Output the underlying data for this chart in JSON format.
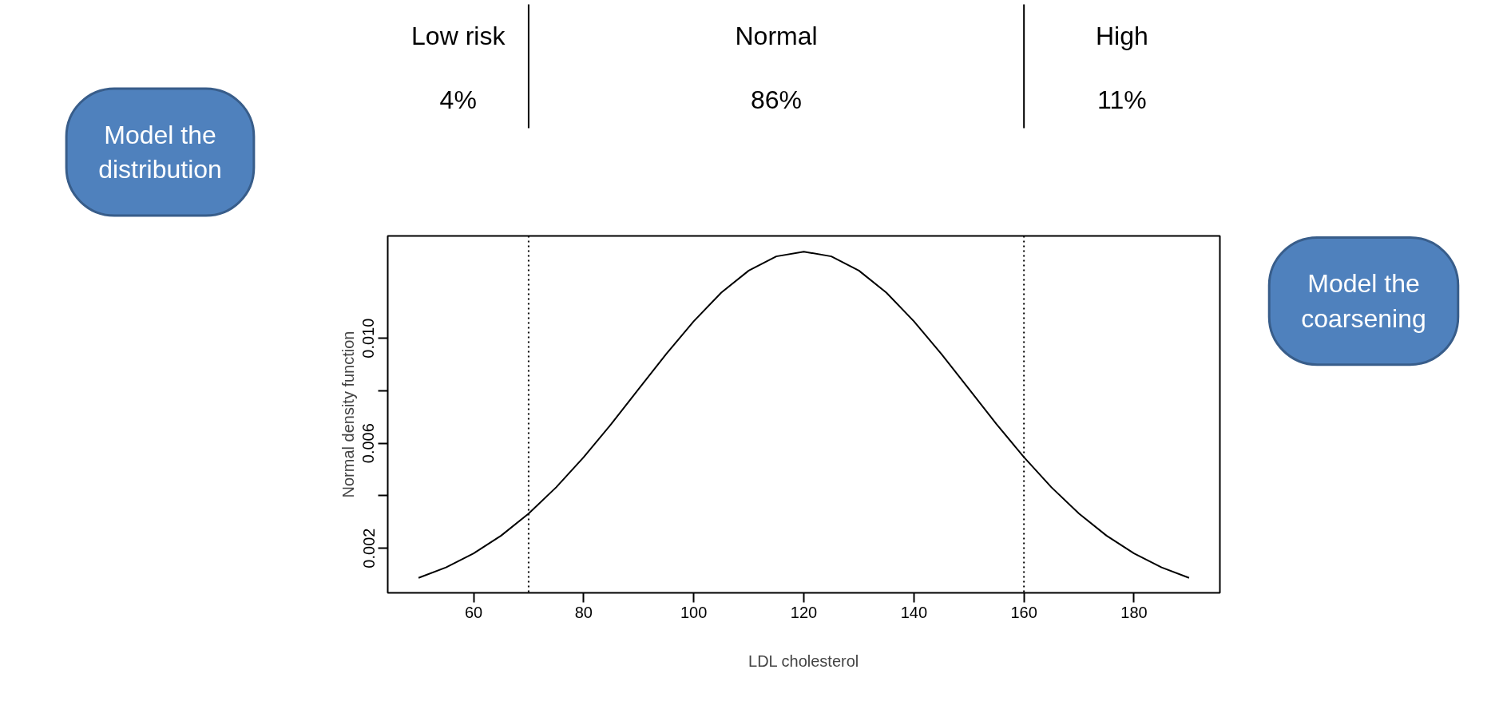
{
  "chart_data": {
    "type": "line",
    "xlabel": "LDL cholesterol",
    "ylabel": "Normal density function",
    "x": [
      50,
      55,
      60,
      65,
      70,
      75,
      80,
      85,
      90,
      95,
      100,
      105,
      110,
      115,
      120,
      125,
      130,
      135,
      140,
      145,
      150,
      155,
      160,
      165,
      170,
      175,
      180,
      185,
      190
    ],
    "series": [
      {
        "color": "#000000",
        "values": [
          0.00087,
          0.00127,
          0.0018,
          0.00248,
          0.00332,
          0.00432,
          0.00547,
          0.00673,
          0.00807,
          0.0094,
          0.01065,
          0.01174,
          0.01258,
          0.01312,
          0.0133,
          0.01312,
          0.01258,
          0.01174,
          0.01065,
          0.0094,
          0.00807,
          0.00673,
          0.00547,
          0.00432,
          0.00332,
          0.00248,
          0.0018,
          0.00127,
          0.00087
        ]
      }
    ],
    "xlim": [
      44.4,
      195.6
    ],
    "ylim": [
      0.0003,
      0.0139
    ],
    "xticks": [
      60,
      80,
      100,
      120,
      140,
      160,
      180
    ],
    "yticks": [
      0.002,
      {
        "value": 0.004,
        "label": null
      },
      0.006,
      {
        "value": 0.008,
        "label": null
      },
      {
        "value": 0.01,
        "label": "0.010"
      }
    ],
    "grid": false,
    "marker": "none",
    "line_style": "solid",
    "ref_lines": [
      {
        "axis": "x",
        "value": 70,
        "label": null,
        "line_style": "dotted"
      },
      {
        "axis": "x",
        "value": 160,
        "label": null,
        "line_style": "dotted"
      }
    ],
    "annotations": [
      "Low risk",
      "4%",
      "Normal",
      "86%",
      "High",
      "11%",
      "Model the\ndistribution",
      "Model the\ncoarsening"
    ]
  }
}
